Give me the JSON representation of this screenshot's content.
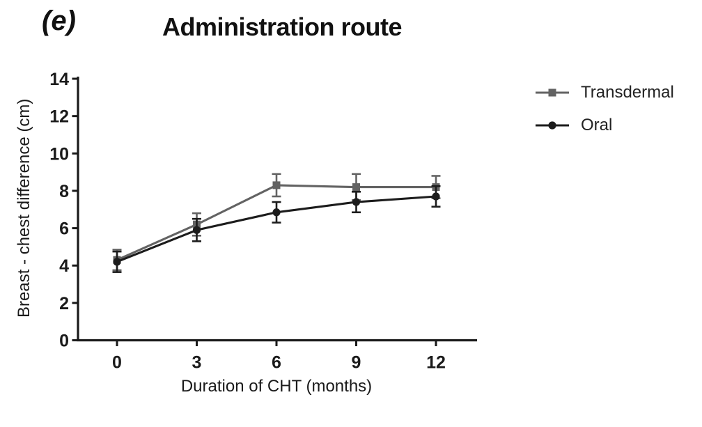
{
  "chart_data": {
    "type": "line",
    "panel": "(e)",
    "title": "Administration route",
    "xlabel": "Duration of CHT (months)",
    "ylabel": "Breast - chest difference (cm)",
    "x": [
      0,
      3,
      6,
      9,
      12
    ],
    "xticks": [
      0,
      3,
      6,
      9,
      12
    ],
    "ylim": [
      0,
      14
    ],
    "ytick_step": 2,
    "grid": false,
    "legend_position": "right",
    "error_bars": true,
    "axis_color": "#1a1a1a",
    "series": [
      {
        "name": "Transdermal",
        "marker": "square",
        "color": "#636363",
        "values": [
          4.3,
          6.2,
          8.3,
          8.2,
          8.2
        ],
        "errors": [
          0.55,
          0.6,
          0.6,
          0.7,
          0.6
        ]
      },
      {
        "name": "Oral",
        "marker": "circle",
        "color": "#1c1c1c",
        "values": [
          4.2,
          5.9,
          6.85,
          7.4,
          7.7
        ],
        "errors": [
          0.55,
          0.6,
          0.55,
          0.55,
          0.55
        ]
      }
    ]
  }
}
